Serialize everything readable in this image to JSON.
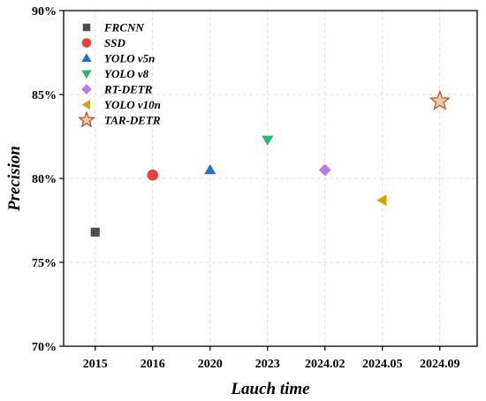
{
  "chart_data": {
    "type": "scatter",
    "xlabel": "Lauch time",
    "ylabel": "Precision",
    "categories": [
      "2015",
      "2016",
      "2020",
      "2023",
      "2024.02",
      "2024.05",
      "2024.09"
    ],
    "yticks": [
      "70%",
      "75%",
      "80%",
      "85%",
      "90%"
    ],
    "ylim": [
      70,
      90
    ],
    "y_unit": "%",
    "grid": true,
    "legend_position": "top-left",
    "series": [
      {
        "name": "FRCNN",
        "x": "2015",
        "y": 76.8,
        "marker": "square",
        "color": "#4d4d4d"
      },
      {
        "name": "SSD",
        "x": "2016",
        "y": 80.2,
        "marker": "circle",
        "color": "#e8413c"
      },
      {
        "name": "YOLO v5n",
        "x": "2020",
        "y": 80.5,
        "marker": "triangle-up",
        "color": "#1f6fd6"
      },
      {
        "name": "YOLO v8",
        "x": "2023",
        "y": 82.3,
        "marker": "triangle-down",
        "color": "#2fb56b"
      },
      {
        "name": "RT-DETR",
        "x": "2024.02",
        "y": 80.5,
        "marker": "diamond",
        "color": "#b77ee0"
      },
      {
        "name": "YOLO v10n",
        "x": "2024.05",
        "y": 78.7,
        "marker": "triangle-left",
        "color": "#d4a20a"
      },
      {
        "name": "TAR-DETR",
        "x": "2024.09",
        "y": 84.6,
        "marker": "star",
        "color": "#f7c9a8",
        "stroke": "#b5542a"
      }
    ]
  }
}
